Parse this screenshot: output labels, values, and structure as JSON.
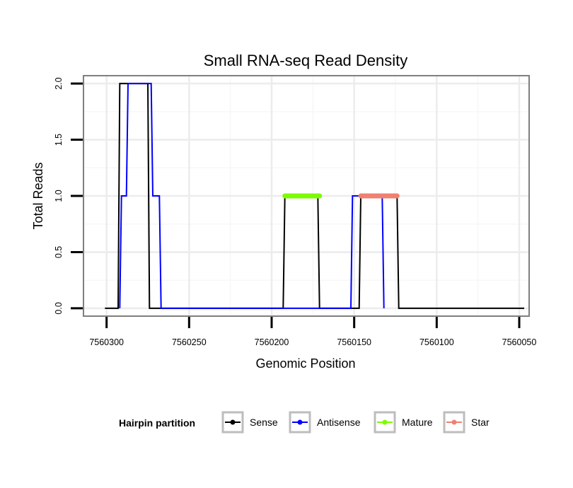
{
  "chart_data": {
    "type": "line",
    "title": "Small RNA-seq Read Density",
    "xlabel": "Genomic Position",
    "ylabel": "Total Reads",
    "xlim": [
      7560314,
      7560044
    ],
    "ylim": [
      -0.07,
      2.07
    ],
    "x_reversed": true,
    "x_ticks": [
      7560300,
      7560250,
      7560200,
      7560150,
      7560100,
      7560050
    ],
    "x_tick_labels": [
      "7560300",
      "7560250",
      "7560200",
      "7560150",
      "7560100",
      "7560050"
    ],
    "y_ticks": [
      0,
      0.5,
      1,
      1.5,
      2
    ],
    "y_tick_labels": [
      "0.0",
      "0.5",
      "1.0",
      "1.5",
      "2.0"
    ],
    "grid": true,
    "legend": {
      "title": "Hairpin partition",
      "position": "bottom",
      "entries": [
        {
          "label": "Sense",
          "color": "#000000"
        },
        {
          "label": "Antisense",
          "color": "#0000ff"
        },
        {
          "label": "Mature",
          "color": "#7cfc00"
        },
        {
          "label": "Star",
          "color": "#f08070"
        }
      ]
    },
    "series": [
      {
        "name": "Sense",
        "color": "#000000",
        "x": [
          7560301,
          7560293,
          7560292,
          7560275,
          7560274,
          7560193,
          7560192,
          7560172,
          7560171,
          7560147,
          7560146,
          7560124,
          7560123,
          7560047
        ],
        "values": [
          0,
          0,
          2,
          2,
          0,
          0,
          1,
          1,
          0,
          0,
          1,
          1,
          0,
          0
        ]
      },
      {
        "name": "Antisense",
        "color": "#0000ff",
        "x": [
          7560292,
          7560291,
          7560288,
          7560287,
          7560273,
          7560272,
          7560268,
          7560267,
          7560152,
          7560151,
          7560133,
          7560132
        ],
        "values": [
          0,
          1,
          1,
          2,
          2,
          1,
          1,
          0,
          0,
          1,
          1,
          0
        ]
      },
      {
        "name": "Mature",
        "color": "#7cfc00",
        "x": [
          7560192,
          7560171
        ],
        "values": [
          1,
          1
        ]
      },
      {
        "name": "Star",
        "color": "#f08070",
        "x": [
          7560146,
          7560124
        ],
        "values": [
          1,
          1
        ]
      }
    ]
  }
}
